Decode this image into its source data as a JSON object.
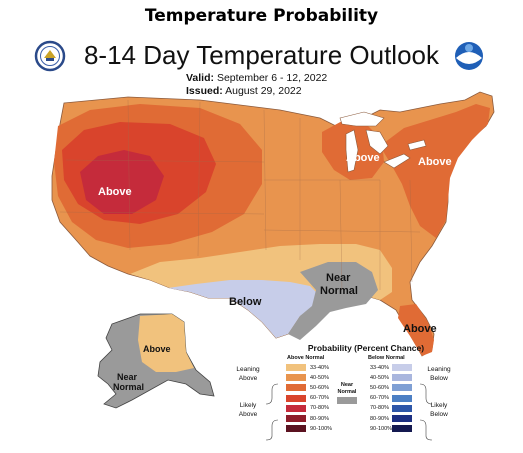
{
  "header": {
    "title": "Temperature Probability"
  },
  "map": {
    "title": "8-14 Day Temperature Outlook",
    "valid_label": "Valid:",
    "valid_value": "September 6 - 12, 2022",
    "issued_label": "Issued:",
    "issued_value": "August 29, 2022",
    "region_labels": {
      "west_above": "Above",
      "greatlakes_above": "Above",
      "northeast_above": "Above",
      "south_below": "Below",
      "south_near_normal_1": "Near",
      "south_near_normal_2": "Normal",
      "florida_above": "Above",
      "alaska_above": "Above",
      "alaska_near_normal_1": "Near",
      "alaska_near_normal_2": "Normal"
    }
  },
  "legend": {
    "title": "Probability (Percent Chance)",
    "above_header": "Above Normal",
    "below_header": "Below Normal",
    "near_normal_1": "Near",
    "near_normal_2": "Normal",
    "leaning_above_1": "Leaning",
    "leaning_above_2": "Above",
    "likely_above_1": "Likely",
    "likely_above_2": "Above",
    "leaning_below_1": "Leaning",
    "leaning_below_2": "Below",
    "likely_below_1": "Likely",
    "likely_below_2": "Below",
    "above_bins": [
      {
        "label": "33-40%",
        "color": "#f1c27d"
      },
      {
        "label": "40-50%",
        "color": "#e8944e"
      },
      {
        "label": "50-60%",
        "color": "#e06b35"
      },
      {
        "label": "60-70%",
        "color": "#d9442c"
      },
      {
        "label": "70-80%",
        "color": "#c52b3b"
      },
      {
        "label": "80-90%",
        "color": "#8e1d2a"
      },
      {
        "label": "90-100%",
        "color": "#5b1220"
      }
    ],
    "below_bins": [
      {
        "label": "33-40%",
        "color": "#c7cde9"
      },
      {
        "label": "40-50%",
        "color": "#a9b6de"
      },
      {
        "label": "50-60%",
        "color": "#7f9fd4"
      },
      {
        "label": "60-70%",
        "color": "#4c7fc4"
      },
      {
        "label": "70-80%",
        "color": "#2d56a8"
      },
      {
        "label": "80-90%",
        "color": "#1c2f82"
      },
      {
        "label": "90-100%",
        "color": "#141950"
      }
    ],
    "near_normal_color": "#9a9a9a"
  },
  "logos": {
    "left": "commerce-seal",
    "right": "noaa-logo"
  }
}
